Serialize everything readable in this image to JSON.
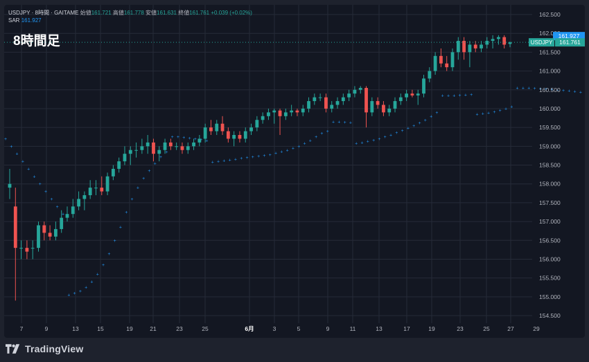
{
  "legend": {
    "symbol": "USDJPY · 8時間 · GAITAME",
    "open_label": "始値",
    "open": "161.721",
    "high_label": "高値",
    "high": "161.778",
    "low_label": "安値",
    "low": "161.631",
    "close_label": "終値",
    "close": "161.761",
    "change": "+0.039 (+0.02%)",
    "sar_label": "SAR",
    "sar": "161.927"
  },
  "overlay_title": "8時間足",
  "brand": "TradingView",
  "price_tags": {
    "sar": "161.927",
    "symbol_label": "USDJPY",
    "last": "161.761"
  },
  "colors": {
    "background": "#131722",
    "up": "#26a69a",
    "down": "#ef5350",
    "sar": "#2196f3",
    "grid": "#262b38",
    "axis_text": "#b2b5be"
  },
  "chart_data": {
    "type": "candlestick",
    "symbol": "USDJPY",
    "timeframe": "8時間",
    "y_range": [
      154.2,
      162.8
    ],
    "y_ticks": [
      "162.500",
      "162.000",
      "161.500",
      "161.000",
      "160.500",
      "160.000",
      "159.500",
      "159.000",
      "158.500",
      "158.000",
      "157.500",
      "157.000",
      "156.500",
      "156.000",
      "155.500",
      "155.000",
      "154.500"
    ],
    "x_ticks": [
      "7",
      "9",
      "13",
      "15",
      "19",
      "21",
      "23",
      "25",
      "6月",
      "3",
      "5",
      "9",
      "11",
      "13",
      "17",
      "19",
      "23",
      "25",
      "27",
      "29"
    ],
    "candles": [
      [
        157.9,
        158.4,
        157.6,
        158.0
      ],
      [
        157.4,
        157.9,
        154.9,
        156.3
      ],
      [
        156.3,
        156.5,
        156.0,
        156.3
      ],
      [
        156.3,
        156.5,
        156.0,
        156.2
      ],
      [
        156.3,
        156.5,
        156.0,
        156.3
      ],
      [
        156.3,
        157.0,
        156.2,
        156.9
      ],
      [
        156.9,
        157.0,
        156.5,
        156.7
      ],
      [
        156.7,
        156.9,
        156.5,
        156.6
      ],
      [
        156.6,
        157.0,
        156.5,
        156.8
      ],
      [
        156.8,
        157.3,
        156.7,
        157.1
      ],
      [
        157.1,
        157.4,
        157.0,
        157.2
      ],
      [
        157.2,
        157.6,
        157.1,
        157.4
      ],
      [
        157.4,
        157.8,
        157.3,
        157.6
      ],
      [
        157.6,
        157.8,
        157.3,
        157.7
      ],
      [
        157.7,
        158.1,
        157.6,
        157.9
      ],
      [
        157.9,
        158.1,
        157.7,
        157.9
      ],
      [
        157.9,
        158.2,
        157.7,
        157.8
      ],
      [
        157.8,
        158.3,
        157.7,
        158.2
      ],
      [
        158.2,
        158.5,
        158.1,
        158.4
      ],
      [
        158.4,
        158.7,
        158.3,
        158.6
      ],
      [
        158.6,
        159.0,
        158.5,
        158.8
      ],
      [
        158.8,
        159.0,
        158.5,
        158.9
      ],
      [
        158.9,
        159.1,
        158.7,
        158.9
      ],
      [
        158.9,
        159.2,
        158.8,
        159.0
      ],
      [
        159.0,
        159.3,
        158.8,
        159.1
      ],
      [
        159.1,
        159.2,
        158.6,
        158.8
      ],
      [
        158.8,
        159.0,
        158.6,
        158.9
      ],
      [
        158.9,
        159.2,
        158.8,
        159.1
      ],
      [
        159.1,
        159.2,
        158.9,
        159.0
      ],
      [
        159.0,
        159.1,
        158.9,
        159.0
      ],
      [
        159.0,
        159.1,
        158.8,
        158.9
      ],
      [
        158.9,
        159.1,
        158.8,
        159.0
      ],
      [
        159.0,
        159.2,
        158.9,
        159.1
      ],
      [
        159.1,
        159.3,
        159.0,
        159.2
      ],
      [
        159.2,
        159.6,
        159.1,
        159.5
      ],
      [
        159.5,
        159.7,
        159.3,
        159.4
      ],
      [
        159.4,
        159.7,
        159.3,
        159.6
      ],
      [
        159.6,
        159.8,
        159.3,
        159.4
      ],
      [
        159.4,
        159.5,
        159.1,
        159.2
      ],
      [
        159.2,
        159.4,
        159.0,
        159.3
      ],
      [
        159.3,
        159.4,
        159.1,
        159.2
      ],
      [
        159.2,
        159.5,
        159.1,
        159.4
      ],
      [
        159.4,
        159.6,
        159.3,
        159.5
      ],
      [
        159.5,
        159.8,
        159.4,
        159.7
      ],
      [
        159.7,
        159.9,
        159.6,
        159.8
      ],
      [
        159.8,
        160.0,
        159.7,
        159.9
      ],
      [
        159.9,
        160.0,
        159.6,
        159.95
      ],
      [
        159.95,
        160.0,
        159.3,
        159.8
      ],
      [
        159.8,
        160.0,
        159.7,
        159.9
      ],
      [
        159.9,
        160.1,
        159.8,
        159.95
      ],
      [
        159.95,
        160.0,
        159.8,
        159.9
      ],
      [
        159.9,
        160.1,
        159.8,
        160.0
      ],
      [
        160.0,
        160.3,
        159.9,
        160.2
      ],
      [
        160.2,
        160.4,
        160.1,
        160.3
      ],
      [
        160.3,
        160.4,
        160.2,
        160.3
      ],
      [
        160.3,
        160.4,
        159.9,
        160.0
      ],
      [
        160.0,
        160.2,
        159.9,
        160.1
      ],
      [
        160.1,
        160.3,
        160.0,
        160.2
      ],
      [
        160.2,
        160.4,
        160.1,
        160.3
      ],
      [
        160.3,
        160.5,
        160.2,
        160.4
      ],
      [
        160.4,
        160.6,
        160.3,
        160.5
      ],
      [
        160.5,
        160.6,
        160.4,
        160.55
      ],
      [
        160.55,
        160.6,
        159.5,
        159.9
      ],
      [
        159.9,
        160.3,
        159.8,
        160.2
      ],
      [
        160.2,
        160.3,
        160.0,
        160.1
      ],
      [
        160.1,
        160.2,
        159.8,
        159.9
      ],
      [
        159.9,
        160.1,
        159.8,
        160.0
      ],
      [
        160.0,
        160.3,
        159.9,
        160.2
      ],
      [
        160.2,
        160.4,
        160.1,
        160.3
      ],
      [
        160.3,
        160.5,
        160.2,
        160.4
      ],
      [
        160.4,
        160.5,
        160.3,
        160.35
      ],
      [
        160.35,
        160.5,
        160.1,
        160.4
      ],
      [
        160.4,
        160.9,
        160.3,
        160.8
      ],
      [
        160.8,
        161.1,
        160.7,
        161.0
      ],
      [
        161.0,
        161.5,
        160.9,
        161.4
      ],
      [
        161.4,
        161.6,
        161.1,
        161.2
      ],
      [
        161.2,
        161.4,
        161.0,
        161.1
      ],
      [
        161.1,
        161.6,
        161.0,
        161.5
      ],
      [
        161.5,
        161.9,
        161.3,
        161.8
      ],
      [
        161.8,
        161.9,
        161.3,
        161.5
      ],
      [
        161.5,
        161.8,
        161.1,
        161.7
      ],
      [
        161.7,
        161.8,
        161.5,
        161.6
      ],
      [
        161.6,
        161.8,
        161.5,
        161.7
      ],
      [
        161.7,
        161.9,
        161.6,
        161.8
      ],
      [
        161.8,
        161.95,
        161.6,
        161.85
      ],
      [
        161.85,
        161.95,
        161.7,
        161.9
      ],
      [
        161.9,
        161.95,
        161.6,
        161.7
      ],
      [
        161.72,
        161.78,
        161.63,
        161.76
      ]
    ],
    "sar_series": [
      {
        "points": [
          159.2,
          159.0,
          158.8,
          158.6,
          158.4,
          158.2,
          158.0,
          157.8,
          157.6,
          157.4,
          157.2
        ]
      },
      {
        "points": [
          155.05,
          155.1,
          155.15,
          155.25,
          155.4,
          155.6,
          155.85,
          156.15,
          156.5,
          156.85,
          157.25,
          157.6,
          157.9,
          158.15,
          158.35,
          158.55,
          158.72,
          158.85
        ]
      },
      {
        "points": [
          159.25,
          159.25,
          159.24,
          159.22,
          159.2,
          159.18,
          159.15
        ]
      },
      {
        "points": [
          158.58,
          158.6,
          158.62,
          158.64,
          158.66,
          158.68,
          158.7,
          158.72,
          158.74,
          158.76,
          158.78,
          158.82,
          158.86,
          158.9,
          158.95,
          159.0,
          159.08,
          159.15,
          159.25,
          159.35,
          159.4
        ]
      },
      {
        "points": [
          159.65,
          159.65,
          159.64,
          159.63
        ]
      },
      {
        "points": [
          159.08,
          159.1,
          159.13,
          159.16,
          159.2,
          159.25,
          159.3,
          159.36,
          159.42,
          159.48,
          159.55,
          159.62,
          159.7,
          159.8,
          159.9
        ]
      },
      {
        "points": [
          160.35,
          160.35,
          160.35,
          160.36,
          160.37,
          160.38
        ]
      },
      {
        "points": [
          159.85,
          159.87,
          159.89,
          159.92,
          159.95,
          160.0,
          160.05
        ]
      },
      {
        "points": [
          160.55,
          160.55,
          160.55,
          160.54,
          160.53,
          160.52,
          160.51,
          160.5,
          160.49,
          160.48,
          160.46,
          160.44
        ]
      },
      {
        "points": [
          159.55,
          159.57,
          159.59,
          159.62,
          159.65,
          159.7,
          159.75,
          159.85,
          159.95,
          160.1,
          160.3,
          160.5,
          160.7,
          160.85,
          161.0,
          161.1,
          161.2,
          161.28,
          161.35,
          161.42,
          161.5,
          161.55,
          161.6
        ]
      },
      {
        "points": [
          161.95,
          161.93,
          161.93
        ]
      }
    ]
  }
}
